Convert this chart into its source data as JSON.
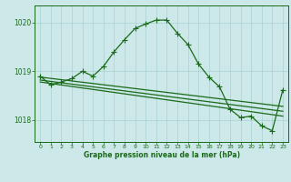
{
  "title": "Graphe pression niveau de la mer (hPa)",
  "background_color": "#cce8e8",
  "grid_color": "#aad0d0",
  "line_color": "#1a6b1a",
  "xlim": [
    -0.5,
    23.5
  ],
  "ylim": [
    1017.55,
    1020.35
  ],
  "yticks": [
    1018,
    1019,
    1020
  ],
  "xticks": [
    0,
    1,
    2,
    3,
    4,
    5,
    6,
    7,
    8,
    9,
    10,
    11,
    12,
    13,
    14,
    15,
    16,
    17,
    18,
    19,
    20,
    21,
    22,
    23
  ],
  "series_peak": {
    "x": [
      0,
      1,
      2,
      3,
      4,
      5,
      6,
      7,
      8,
      9,
      10,
      11,
      12,
      13,
      14,
      15,
      16,
      17,
      18,
      19,
      20,
      21,
      22,
      23
    ],
    "y": [
      1018.9,
      1018.72,
      1018.78,
      1018.85,
      1019.0,
      1018.9,
      1019.1,
      1019.4,
      1019.65,
      1019.88,
      1019.97,
      1020.05,
      1020.05,
      1019.78,
      1019.55,
      1019.15,
      1018.88,
      1018.68,
      1018.22,
      1018.05,
      1018.08,
      1017.88,
      1017.78,
      1018.62
    ]
  },
  "series_flat1": {
    "x": [
      0,
      23
    ],
    "y": [
      1018.88,
      1018.28
    ]
  },
  "series_flat2": {
    "x": [
      0,
      23
    ],
    "y": [
      1018.82,
      1018.18
    ]
  },
  "series_flat3": {
    "x": [
      0,
      23
    ],
    "y": [
      1018.78,
      1018.08
    ]
  },
  "series_small": {
    "x": [
      0,
      1,
      2,
      3,
      4,
      5,
      6
    ],
    "y": [
      1018.9,
      1018.72,
      1018.78,
      1018.85,
      1019.0,
      1018.88,
      1018.88
    ]
  }
}
